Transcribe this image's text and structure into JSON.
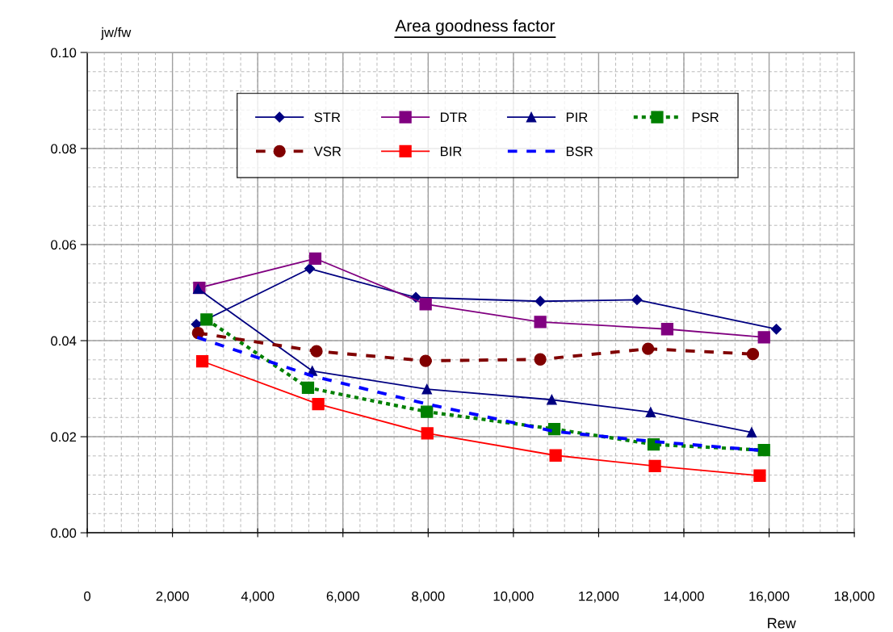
{
  "chart_data": {
    "type": "line",
    "title": "Area goodness factor",
    "xlabel": "Rew",
    "ylabel": "jw/fw",
    "xlim": [
      0,
      18000
    ],
    "ylim": [
      0,
      0.1
    ],
    "xticks": [
      0,
      {
        "value": 2000,
        "label": "2,000"
      },
      {
        "value": 4000,
        "label": "4,000"
      },
      {
        "value": 6000,
        "label": "6,000"
      },
      {
        "value": 8000,
        "label": "8,000"
      },
      {
        "value": 10000,
        "label": "10,000"
      },
      {
        "value": 12000,
        "label": "12,000"
      },
      {
        "value": 14000,
        "label": "14,000"
      },
      {
        "value": 16000,
        "label": "16,000"
      },
      {
        "value": 18000,
        "label": "18,000"
      }
    ],
    "yticks": [
      {
        "value": 0,
        "label": "0.00"
      },
      {
        "value": 0.02,
        "label": "0.02"
      },
      {
        "value": 0.04,
        "label": "0.04"
      },
      {
        "value": 0.06,
        "label": "0.06"
      },
      {
        "value": 0.08,
        "label": "0.08"
      },
      {
        "value": 0.1,
        "label": "0.10"
      }
    ],
    "grid": true,
    "legend": "top right",
    "series": [
      {
        "name": "STR",
        "color": "#000080",
        "marker": "diamond",
        "line_style": "solid",
        "x": [
          2560,
          5220,
          7710,
          10630,
          12900,
          16170
        ],
        "values": [
          0.0434,
          0.055,
          0.049,
          0.0482,
          0.0485,
          0.0424
        ]
      },
      {
        "name": "DTR",
        "color": "#800080",
        "marker": "square",
        "line_style": "solid",
        "x": [
          2630,
          5350,
          7940,
          10630,
          13610,
          15880
        ],
        "values": [
          0.051,
          0.0571,
          0.0476,
          0.0439,
          0.0424,
          0.0407
        ]
      },
      {
        "name": "PIR",
        "color": "#000080",
        "marker": "triangle",
        "line_style": "solid",
        "x": [
          2600,
          5280,
          7970,
          10900,
          13220,
          15590
        ],
        "values": [
          0.0508,
          0.0337,
          0.0299,
          0.0277,
          0.0251,
          0.0209
        ]
      },
      {
        "name": "PSR",
        "color": "#008000",
        "marker": "square",
        "line_style": "dotted",
        "x": [
          2800,
          5180,
          7970,
          10960,
          13290,
          15880
        ],
        "values": [
          0.0444,
          0.0302,
          0.0252,
          0.0216,
          0.0184,
          0.0172
        ]
      },
      {
        "name": "VSR",
        "color": "#800000",
        "marker": "circle",
        "line_style": "dashed",
        "x": [
          2600,
          5380,
          7940,
          10630,
          13160,
          15620
        ],
        "values": [
          0.0416,
          0.0378,
          0.0358,
          0.0361,
          0.0383,
          0.0372
        ]
      },
      {
        "name": "BIR",
        "color": "#ff0000",
        "marker": "square",
        "line_style": "solid",
        "x": [
          2700,
          5420,
          7980,
          10990,
          13320,
          15780
        ],
        "values": [
          0.0357,
          0.0268,
          0.0207,
          0.0161,
          0.0139,
          0.0119
        ]
      },
      {
        "name": "BSR",
        "color": "#0000ff",
        "marker": "none",
        "line_style": "dashed",
        "x": [
          2580,
          5300,
          7970,
          10960,
          13290,
          15880
        ],
        "values": [
          0.0407,
          0.0326,
          0.0268,
          0.0211,
          0.019,
          0.0171
        ]
      }
    ]
  }
}
